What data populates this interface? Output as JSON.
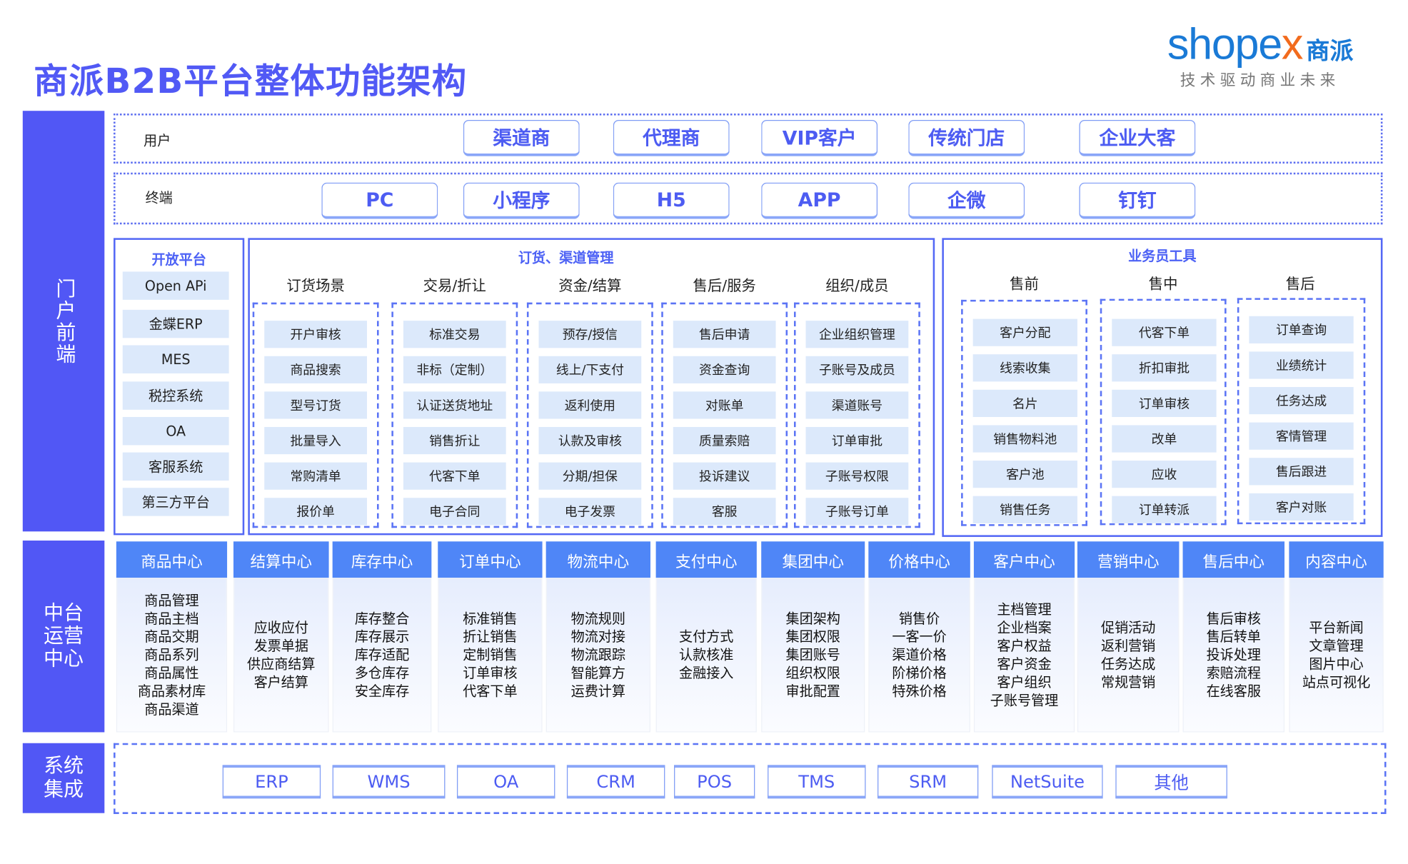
{
  "title": "商派B2B平台整体功能架构",
  "logo": {
    "word_a": "shope",
    "word_x": "x",
    "cn": "商派",
    "tagline": "技术驱动商业未来"
  },
  "colors": {
    "primary": "#5157F5",
    "header_blue": "#4F86F7",
    "item_bg": "#DCE9FB",
    "logo_blue": "#1A7AD6",
    "logo_orange": "#F26B1D"
  },
  "side": {
    "portal": "门户前端",
    "middle": "中台运营中心",
    "integration": "系统集成"
  },
  "users": {
    "label": "用户",
    "items": [
      "渠道商",
      "代理商",
      "VIP客户",
      "传统门店",
      "企业大客"
    ]
  },
  "terminals": {
    "label": "终端",
    "items": [
      "PC",
      "小程序",
      "H5",
      "APP",
      "企微",
      "钉钉"
    ]
  },
  "open_platform": {
    "title": "开放平台",
    "items": [
      "Open APi",
      "金蝶ERP",
      "MES",
      "税控系统",
      "OA",
      "客服系统",
      "第三方平台"
    ]
  },
  "ordering": {
    "title": "订货、渠道管理",
    "columns": [
      {
        "heading": "订货场景",
        "items": [
          "开户审核",
          "商品搜索",
          "型号订货",
          "批量导入",
          "常购清单",
          "报价单"
        ]
      },
      {
        "heading": "交易/折让",
        "items": [
          "标准交易",
          "非标（定制）",
          "认证送货地址",
          "销售折让",
          "代客下单",
          "电子合同"
        ]
      },
      {
        "heading": "资金/结算",
        "items": [
          "预存/授信",
          "线上/下支付",
          "返利使用",
          "认款及审核",
          "分期/担保",
          "电子发票"
        ]
      },
      {
        "heading": "售后/服务",
        "items": [
          "售后申请",
          "资金查询",
          "对账单",
          "质量索赔",
          "投诉建议",
          "客服"
        ]
      },
      {
        "heading": "组织/成员",
        "items": [
          "企业组织管理",
          "子账号及成员",
          "渠道账号",
          "订单审批",
          "子账号权限",
          "子账号订单"
        ]
      }
    ]
  },
  "sales_tools": {
    "title": "业务员工具",
    "columns": [
      {
        "heading": "售前",
        "items": [
          "客户分配",
          "线索收集",
          "名片",
          "销售物料池",
          "客户池",
          "销售任务"
        ]
      },
      {
        "heading": "售中",
        "items": [
          "代客下单",
          "折扣审批",
          "订单审核",
          "改单",
          "应收",
          "订单转派"
        ]
      },
      {
        "heading": "售后",
        "items": [
          "订单查询",
          "业绩统计",
          "任务达成",
          "客情管理",
          "售后跟进",
          "客户对账"
        ]
      }
    ]
  },
  "centers": [
    {
      "name": "商品中心",
      "items": [
        "商品管理",
        "商品主档",
        "商品交期",
        "商品系列",
        "商品属性",
        "商品素材库",
        "商品渠道"
      ]
    },
    {
      "name": "结算中心",
      "items": [
        "应收应付",
        "发票单据",
        "供应商结算",
        "客户结算"
      ]
    },
    {
      "name": "库存中心",
      "items": [
        "库存整合",
        "库存展示",
        "库存适配",
        "多仓库存",
        "安全库存"
      ]
    },
    {
      "name": "订单中心",
      "items": [
        "标准销售",
        "折让销售",
        "定制销售",
        "订单审核",
        "代客下单"
      ]
    },
    {
      "name": "物流中心",
      "items": [
        "物流规则",
        "物流对接",
        "物流跟踪",
        "智能算方",
        "运费计算"
      ]
    },
    {
      "name": "支付中心",
      "items": [
        "支付方式",
        "认款核准",
        "金融接入"
      ]
    },
    {
      "name": "集团中心",
      "items": [
        "集团架构",
        "集团权限",
        "集团账号",
        "组织权限",
        "审批配置"
      ]
    },
    {
      "name": "价格中心",
      "items": [
        "销售价",
        "一客一价",
        "渠道价格",
        "阶梯价格",
        "特殊价格"
      ]
    },
    {
      "name": "客户中心",
      "items": [
        "主档管理",
        "企业档案",
        "客户权益",
        "客户资金",
        "客户组织",
        "子账号管理"
      ]
    },
    {
      "name": "营销中心",
      "items": [
        "促销活动",
        "返利营销",
        "任务达成",
        "常规营销"
      ]
    },
    {
      "name": "售后中心",
      "items": [
        "售后审核",
        "售后转单",
        "投诉处理",
        "索赔流程",
        "在线客服"
      ]
    },
    {
      "name": "内容中心",
      "items": [
        "平台新闻",
        "文章管理",
        "图片中心",
        "站点可视化"
      ]
    }
  ],
  "integrations": [
    "ERP",
    "WMS",
    "OA",
    "CRM",
    "POS",
    "TMS",
    "SRM",
    "NetSuite",
    "其他"
  ]
}
